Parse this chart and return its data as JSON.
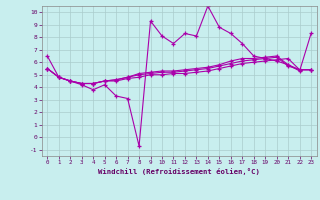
{
  "title": "",
  "xlabel": "Windchill (Refroidissement éolien,°C)",
  "ylabel": "",
  "xlim": [
    -0.5,
    23.5
  ],
  "ylim": [
    -1.5,
    10.5
  ],
  "xticks": [
    0,
    1,
    2,
    3,
    4,
    5,
    6,
    7,
    8,
    9,
    10,
    11,
    12,
    13,
    14,
    15,
    16,
    17,
    18,
    19,
    20,
    21,
    22,
    23
  ],
  "yticks": [
    -1,
    0,
    1,
    2,
    3,
    4,
    5,
    6,
    7,
    8,
    9,
    10
  ],
  "background_color": "#c8eeee",
  "grid_color": "#aacccc",
  "line_color": "#aa00aa",
  "line1": [
    6.5,
    4.8,
    4.5,
    4.2,
    3.8,
    4.2,
    3.3,
    3.1,
    -0.7,
    9.3,
    8.1,
    7.5,
    8.3,
    8.1,
    10.5,
    8.8,
    8.3,
    7.5,
    6.5,
    6.3,
    6.1,
    5.8,
    5.3,
    8.3
  ],
  "line2": [
    5.5,
    4.8,
    4.5,
    4.3,
    4.3,
    4.5,
    4.5,
    4.7,
    4.8,
    5.0,
    5.0,
    5.1,
    5.1,
    5.2,
    5.3,
    5.5,
    5.7,
    5.9,
    6.0,
    6.1,
    6.2,
    6.3,
    5.4,
    5.4
  ],
  "line3": [
    5.5,
    4.8,
    4.5,
    4.3,
    4.3,
    4.5,
    4.6,
    4.8,
    5.0,
    5.1,
    5.2,
    5.2,
    5.3,
    5.4,
    5.5,
    5.7,
    5.9,
    6.1,
    6.2,
    6.3,
    6.4,
    5.7,
    5.4,
    5.4
  ],
  "line4": [
    5.5,
    4.8,
    4.5,
    4.3,
    4.3,
    4.5,
    4.6,
    4.8,
    5.1,
    5.2,
    5.3,
    5.3,
    5.4,
    5.5,
    5.6,
    5.8,
    6.1,
    6.3,
    6.3,
    6.4,
    6.5,
    5.8,
    5.4,
    5.4
  ]
}
